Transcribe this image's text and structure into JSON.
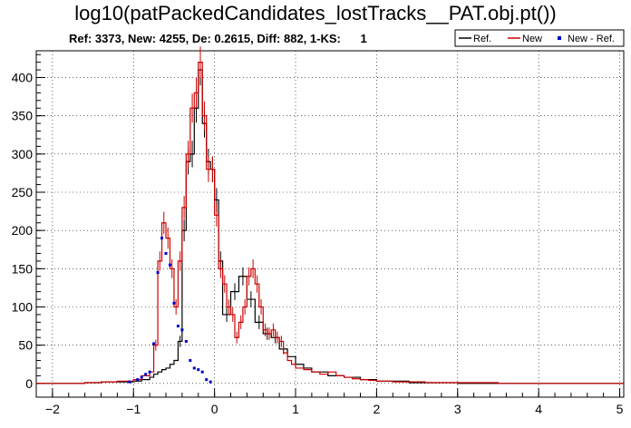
{
  "chart_data": {
    "type": "histogram",
    "title": "log10(patPackedCandidates_lostTracks__PAT.obj.pt())",
    "stats_line": "Ref: 3373, New: 4255, De: 0.2615, Diff: 882, 1-KS:      1",
    "xlim": [
      -2.2,
      5.05
    ],
    "ylim": [
      -18,
      435
    ],
    "xticks": [
      -2,
      -1,
      0,
      1,
      2,
      3,
      4,
      5
    ],
    "xtick_labels": [
      "−2",
      "−1",
      "0",
      "1",
      "2",
      "3",
      "4",
      "5"
    ],
    "yticks": [
      0,
      50,
      100,
      150,
      200,
      250,
      300,
      350,
      400
    ],
    "ytick_labels": [
      "0",
      "50",
      "100",
      "150",
      "200",
      "250",
      "300",
      "350",
      "400"
    ],
    "grid": true,
    "legend_position": "top-right",
    "legend": [
      {
        "label": "Ref.",
        "color": "#000000",
        "style": "line"
      },
      {
        "label": "New",
        "color": "#cc0000",
        "style": "line"
      },
      {
        "label": "New - Ref.",
        "color": "#0000cc",
        "style": "marker"
      }
    ],
    "series": [
      {
        "name": "Ref.",
        "color": "#000000",
        "x": [
          -2.2,
          -1.6,
          -1.4,
          -1.2,
          -1.0,
          -0.9,
          -0.8,
          -0.75,
          -0.7,
          -0.65,
          -0.6,
          -0.55,
          -0.5,
          -0.45,
          -0.4,
          -0.35,
          -0.3,
          -0.25,
          -0.2,
          -0.15,
          -0.1,
          -0.05,
          0.0,
          0.05,
          0.1,
          0.2,
          0.3,
          0.4,
          0.5,
          0.6,
          0.7,
          0.8,
          0.9,
          1.0,
          1.1,
          1.2,
          1.4,
          1.6,
          1.8,
          2.0,
          2.4,
          3.0,
          4.0,
          5.05
        ],
        "y": [
          0,
          1,
          2,
          2,
          3,
          5,
          8,
          12,
          15,
          18,
          20,
          25,
          30,
          55,
          200,
          290,
          300,
          360,
          410,
          340,
          290,
          280,
          240,
          160,
          90,
          120,
          140,
          110,
          80,
          65,
          60,
          45,
          35,
          25,
          20,
          15,
          10,
          8,
          5,
          3,
          1,
          0,
          0,
          0
        ]
      },
      {
        "name": "New",
        "color": "#cc0000",
        "x": [
          -2.2,
          -1.6,
          -1.4,
          -1.2,
          -1.0,
          -0.9,
          -0.8,
          -0.75,
          -0.7,
          -0.65,
          -0.6,
          -0.55,
          -0.5,
          -0.45,
          -0.4,
          -0.35,
          -0.3,
          -0.25,
          -0.2,
          -0.15,
          -0.1,
          -0.05,
          0.0,
          0.05,
          0.1,
          0.15,
          0.2,
          0.25,
          0.3,
          0.35,
          0.4,
          0.45,
          0.5,
          0.55,
          0.6,
          0.65,
          0.7,
          0.75,
          0.8,
          0.85,
          0.9,
          0.95,
          1.0,
          1.1,
          1.2,
          1.3,
          1.4,
          1.5,
          1.6,
          1.7,
          1.8,
          1.9,
          2.0,
          2.2,
          2.4,
          2.6,
          2.8,
          3.0,
          3.5,
          4.0,
          4.5,
          5.05
        ],
        "y": [
          0,
          1,
          2,
          3,
          5,
          10,
          15,
          50,
          160,
          210,
          190,
          150,
          100,
          160,
          230,
          300,
          360,
          380,
          420,
          350,
          280,
          280,
          220,
          150,
          130,
          100,
          90,
          60,
          80,
          100,
          140,
          150,
          130,
          100,
          70,
          65,
          70,
          60,
          55,
          40,
          30,
          25,
          20,
          18,
          15,
          12,
          15,
          10,
          8,
          6,
          5,
          4,
          3,
          2,
          2,
          1,
          1,
          1,
          0,
          0,
          0,
          0
        ]
      }
    ],
    "diff_points": {
      "name": "New - Ref.",
      "color": "#0000cc",
      "x": [
        -1.05,
        -0.95,
        -0.9,
        -0.85,
        -0.8,
        -0.75,
        -0.7,
        -0.65,
        -0.6,
        -0.55,
        -0.5,
        -0.45,
        -0.4,
        -0.35,
        -0.3,
        -0.25,
        -0.2,
        -0.15,
        -0.1,
        -0.05
      ],
      "y": [
        2,
        5,
        8,
        12,
        15,
        52,
        145,
        190,
        170,
        155,
        105,
        75,
        70,
        55,
        30,
        20,
        18,
        15,
        5,
        2
      ]
    }
  }
}
